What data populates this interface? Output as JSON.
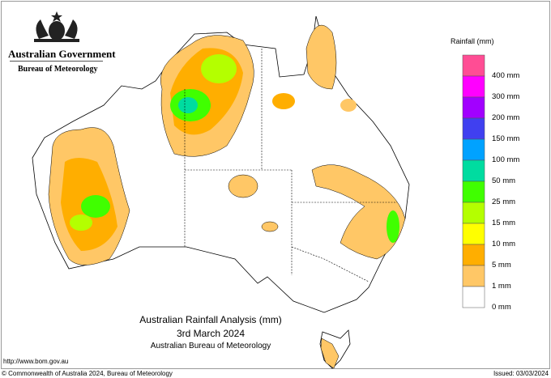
{
  "header": {
    "government": "Australian Government",
    "bureau": "Bureau of Meteorology"
  },
  "map": {
    "title": "Australian Rainfall Analysis (mm)",
    "date": "3rd March 2024",
    "source": "Australian Bureau of Meteorology"
  },
  "legend": {
    "title": "Rainfall (mm)",
    "bands": [
      {
        "color": "#ff4d94"
      },
      {
        "color": "#ff00ff"
      },
      {
        "color": "#a200ff"
      },
      {
        "color": "#4040f0"
      },
      {
        "color": "#00a2ff"
      },
      {
        "color": "#00dca0"
      },
      {
        "color": "#40ff00"
      },
      {
        "color": "#b4ff00"
      },
      {
        "color": "#ffff00"
      },
      {
        "color": "#ffae00"
      },
      {
        "color": "#ffc766"
      },
      {
        "color": "#ffffff"
      }
    ],
    "labels": [
      "400 mm",
      "300 mm",
      "200 mm",
      "150 mm",
      "100 mm",
      "50 mm",
      "25 mm",
      "15 mm",
      "10 mm",
      "5 mm",
      "1 mm",
      "0 mm"
    ]
  },
  "footer": {
    "url": "http://www.bom.gov.au",
    "copyright": "© Commonwealth of Australia 2024, Bureau of Meteorology",
    "issued": "Issued: 03/03/2024"
  }
}
